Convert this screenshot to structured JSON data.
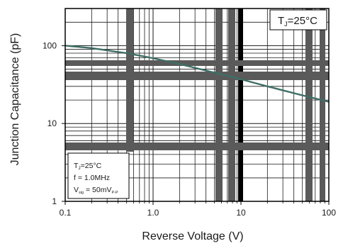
{
  "chart_data": {
    "type": "line",
    "x_scale": "log",
    "y_scale": "log",
    "xlim": [
      0.1,
      100
    ],
    "ylim": [
      1,
      300
    ],
    "x_ticks": [
      0.1,
      1,
      10,
      100
    ],
    "x_tick_labels": [
      "0.1",
      "1.0",
      "10",
      "100"
    ],
    "y_ticks": [
      1,
      10,
      100
    ],
    "y_tick_labels": [
      "1",
      "10",
      "100"
    ],
    "xlabel": "Reverse  Voltage (V)",
    "ylabel": "Junction Capacitance (pF)",
    "grid": true,
    "series": [
      {
        "color": "#3f6e66",
        "x": [
          0.1,
          0.2,
          0.5,
          1,
          2,
          5,
          10,
          20,
          50,
          100
        ],
        "y": [
          100,
          93,
          80,
          69,
          58,
          45,
          37,
          30,
          23,
          19
        ]
      }
    ],
    "annotations": {
      "temp_box": {
        "prefix": "T",
        "sub": "J",
        "suffix": "=25°C"
      },
      "conditions": {
        "line1": {
          "prefix": "T",
          "sub": "J",
          "suffix": "=25°C"
        },
        "line2": "f = 1.0MHz",
        "line3": {
          "prefix": "V",
          "sub": "sig",
          "mid": " = 50mV",
          "sub2": "P-P"
        }
      }
    }
  },
  "colors": {
    "curve": "#3f6e66",
    "grid_band": "#5a5a5a",
    "grid_thin": "#1a1a1a",
    "grid_bold": "#000000"
  }
}
